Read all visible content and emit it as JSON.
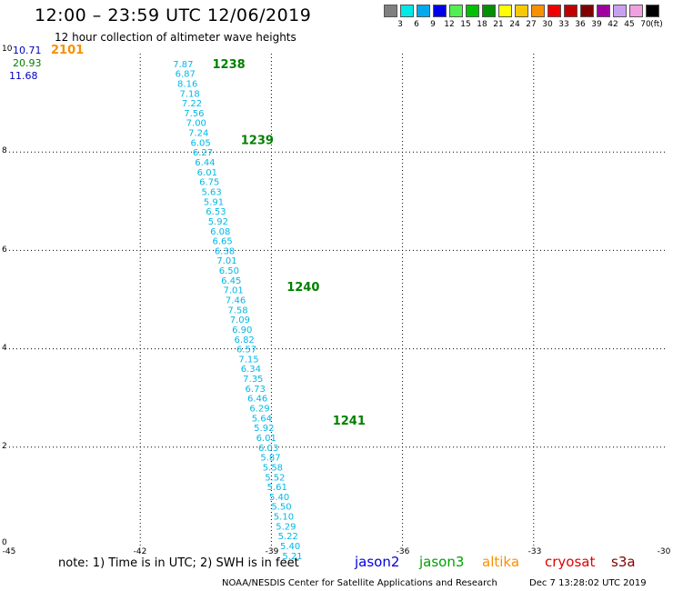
{
  "header": {
    "title": "12:00 – 23:59 UTC 12/06/2019",
    "subtitle": "12 hour collection of altimeter wave heights"
  },
  "legend": {
    "unit": "(ft)",
    "bins": [
      {
        "label": "3",
        "color": "#808080"
      },
      {
        "label": "6",
        "color": "#00e8e8"
      },
      {
        "label": "9",
        "color": "#00a8f0"
      },
      {
        "label": "12",
        "color": "#0000e8"
      },
      {
        "label": "15",
        "color": "#50f050"
      },
      {
        "label": "18",
        "color": "#00c000"
      },
      {
        "label": "21",
        "color": "#009000"
      },
      {
        "label": "24",
        "color": "#ffff00"
      },
      {
        "label": "27",
        "color": "#f8c800"
      },
      {
        "label": "30",
        "color": "#f89000"
      },
      {
        "label": "33",
        "color": "#f00000"
      },
      {
        "label": "36",
        "color": "#c00000"
      },
      {
        "label": "39",
        "color": "#800000"
      },
      {
        "label": "42",
        "color": "#a000a0"
      },
      {
        "label": "45",
        "color": "#c8a0f0"
      },
      {
        "label": "70",
        "color": "#f0a0e0"
      },
      {
        "label": "",
        "color": "#000000"
      }
    ]
  },
  "corner_values": [
    {
      "text": "10.71",
      "color": "#0000c0"
    },
    {
      "text": "20.93",
      "color": "#008000"
    },
    {
      "text": "11.68",
      "color": "#0000c0"
    },
    {
      "text": "2101",
      "color": "#f89000"
    }
  ],
  "footer": {
    "note": "note: 1) Time is in UTC; 2) SWH is in feet",
    "satellites": [
      {
        "name": "jason2",
        "color": "#0000e0"
      },
      {
        "name": "jason3",
        "color": "#00a000"
      },
      {
        "name": "altika",
        "color": "#f89000"
      },
      {
        "name": "cryosat",
        "color": "#e00000"
      },
      {
        "name": "s3a",
        "color": "#800000"
      }
    ],
    "credit": "NOAA/NESDIS Center for Satellite Applications and Research",
    "generated": "Dec  7 13:28:02 UTC 2019"
  },
  "chart_data": {
    "type": "scatter",
    "xlim": [
      -45,
      -30
    ],
    "ylim": [
      0,
      10
    ],
    "x_ticks": [
      -45,
      -42,
      -39,
      -36,
      -33,
      -30
    ],
    "y_ticks": [
      0,
      2,
      4,
      6,
      8,
      10
    ],
    "grid": true,
    "point_color": "#00b8e8",
    "time_label_color": "#008000",
    "time_labels": [
      {
        "text": "1238",
        "lon": -40.35,
        "lat": 9.8
      },
      {
        "text": "1239",
        "lon": -39.7,
        "lat": 8.25
      },
      {
        "text": "1240",
        "lon": -38.65,
        "lat": 5.27
      },
      {
        "text": "1241",
        "lon": -37.6,
        "lat": 2.55
      }
    ],
    "points": [
      {
        "lat": 9.8,
        "lon": -41.25,
        "value": "7.87"
      },
      {
        "lat": 9.6,
        "lon": -41.2,
        "value": "6.87"
      },
      {
        "lat": 9.4,
        "lon": -41.15,
        "value": "8.16"
      },
      {
        "lat": 9.2,
        "lon": -41.1,
        "value": "7.18"
      },
      {
        "lat": 9.0,
        "lon": -41.05,
        "value": "7.22"
      },
      {
        "lat": 8.8,
        "lon": -41.0,
        "value": "7.56"
      },
      {
        "lat": 8.6,
        "lon": -40.95,
        "value": "7.00"
      },
      {
        "lat": 8.4,
        "lon": -40.9,
        "value": "7.24"
      },
      {
        "lat": 8.2,
        "lon": -40.85,
        "value": "6.05"
      },
      {
        "lat": 8.0,
        "lon": -40.8,
        "value": "6.27"
      },
      {
        "lat": 7.8,
        "lon": -40.75,
        "value": "6.44"
      },
      {
        "lat": 7.6,
        "lon": -40.7,
        "value": "6.01"
      },
      {
        "lat": 7.4,
        "lon": -40.65,
        "value": "6.75"
      },
      {
        "lat": 7.2,
        "lon": -40.6,
        "value": "5.63"
      },
      {
        "lat": 7.0,
        "lon": -40.55,
        "value": "5.91"
      },
      {
        "lat": 6.8,
        "lon": -40.5,
        "value": "6.53"
      },
      {
        "lat": 6.6,
        "lon": -40.45,
        "value": "5.92"
      },
      {
        "lat": 6.4,
        "lon": -40.4,
        "value": "6.08"
      },
      {
        "lat": 6.2,
        "lon": -40.35,
        "value": "6.65"
      },
      {
        "lat": 6.0,
        "lon": -40.3,
        "value": "6.38"
      },
      {
        "lat": 5.8,
        "lon": -40.25,
        "value": "7.01"
      },
      {
        "lat": 5.6,
        "lon": -40.2,
        "value": "6.50"
      },
      {
        "lat": 5.4,
        "lon": -40.15,
        "value": "6.45"
      },
      {
        "lat": 5.2,
        "lon": -40.1,
        "value": "7.01"
      },
      {
        "lat": 5.0,
        "lon": -40.05,
        "value": "7.46"
      },
      {
        "lat": 4.8,
        "lon": -40.0,
        "value": "7.58"
      },
      {
        "lat": 4.6,
        "lon": -39.95,
        "value": "7.09"
      },
      {
        "lat": 4.4,
        "lon": -39.9,
        "value": "6.90"
      },
      {
        "lat": 4.2,
        "lon": -39.85,
        "value": "6.82"
      },
      {
        "lat": 4.0,
        "lon": -39.8,
        "value": "6.57"
      },
      {
        "lat": 3.8,
        "lon": -39.75,
        "value": "7.15"
      },
      {
        "lat": 3.6,
        "lon": -39.7,
        "value": "6.34"
      },
      {
        "lat": 3.4,
        "lon": -39.65,
        "value": "7.35"
      },
      {
        "lat": 3.2,
        "lon": -39.6,
        "value": "6.73"
      },
      {
        "lat": 3.0,
        "lon": -39.55,
        "value": "6.46"
      },
      {
        "lat": 2.8,
        "lon": -39.5,
        "value": "6.29"
      },
      {
        "lat": 2.6,
        "lon": -39.45,
        "value": "5.64"
      },
      {
        "lat": 2.4,
        "lon": -39.4,
        "value": "5.92"
      },
      {
        "lat": 2.2,
        "lon": -39.35,
        "value": "6.01"
      },
      {
        "lat": 2.0,
        "lon": -39.3,
        "value": "6.03"
      },
      {
        "lat": 1.8,
        "lon": -39.25,
        "value": "5.87"
      },
      {
        "lat": 1.6,
        "lon": -39.2,
        "value": "5.58"
      },
      {
        "lat": 1.4,
        "lon": -39.15,
        "value": "5.52"
      },
      {
        "lat": 1.2,
        "lon": -39.1,
        "value": "5.61"
      },
      {
        "lat": 1.0,
        "lon": -39.05,
        "value": "5.40"
      },
      {
        "lat": 0.8,
        "lon": -39.0,
        "value": "5.50"
      },
      {
        "lat": 0.6,
        "lon": -38.95,
        "value": "5.10"
      },
      {
        "lat": 0.4,
        "lon": -38.9,
        "value": "5.29"
      },
      {
        "lat": 0.2,
        "lon": -38.85,
        "value": "5.22"
      },
      {
        "lat": 0.0,
        "lon": -38.8,
        "value": "5.40"
      },
      {
        "lat": -0.2,
        "lon": -38.75,
        "value": "5.21"
      }
    ]
  }
}
